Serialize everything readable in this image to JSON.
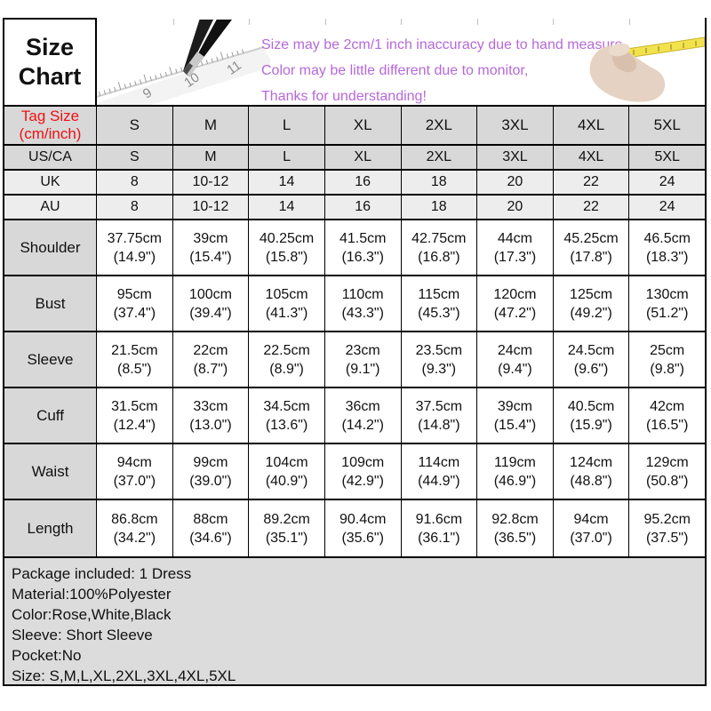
{
  "header": {
    "title_lines": [
      "Size",
      "Chart"
    ],
    "notes": [
      "Size may be 2cm/1 inch inaccuracy due to hand measure,",
      "Color may be little different due to monitor,",
      "Thanks for understanding!"
    ],
    "art": {
      "left": "pencil-and-ruler-photo",
      "right": "hand-with-yellow-ruler-photo"
    }
  },
  "size_table": {
    "corner_label": [
      "Tag Size",
      "(cm/inch)"
    ],
    "columns": [
      "S",
      "M",
      "L",
      "XL",
      "2XL",
      "3XL",
      "4XL",
      "5XL"
    ],
    "conversion_rows": [
      {
        "label": "US/CA",
        "values": [
          "S",
          "M",
          "L",
          "XL",
          "2XL",
          "3XL",
          "4XL",
          "5XL"
        ]
      },
      {
        "label": "UK",
        "values": [
          "8",
          "10-12",
          "14",
          "16",
          "18",
          "20",
          "22",
          "24"
        ]
      },
      {
        "label": "AU",
        "values": [
          "8",
          "10-12",
          "14",
          "16",
          "18",
          "20",
          "22",
          "24"
        ]
      }
    ],
    "measurement_rows": [
      {
        "label": "Shoulder",
        "cm": [
          "37.75cm",
          "39cm",
          "40.25cm",
          "41.5cm",
          "42.75cm",
          "44cm",
          "45.25cm",
          "46.5cm"
        ],
        "inch": [
          "(14.9\")",
          "(15.4\")",
          "(15.8\")",
          "(16.3\")",
          "(16.8\")",
          "(17.3\")",
          "(17.8\")",
          "(18.3\")"
        ]
      },
      {
        "label": "Bust",
        "cm": [
          "95cm",
          "100cm",
          "105cm",
          "110cm",
          "115cm",
          "120cm",
          "125cm",
          "130cm"
        ],
        "inch": [
          "(37.4\")",
          "(39.4\")",
          "(41.3\")",
          "(43.3\")",
          "(45.3\")",
          "(47.2\")",
          "(49.2\")",
          "(51.2\")"
        ]
      },
      {
        "label": "Sleeve",
        "cm": [
          "21.5cm",
          "22cm",
          "22.5cm",
          "23cm",
          "23.5cm",
          "24cm",
          "24.5cm",
          "25cm"
        ],
        "inch": [
          "(8.5\")",
          "(8.7\")",
          "(8.9\")",
          "(9.1\")",
          "(9.3\")",
          "(9.4\")",
          "(9.6\")",
          "(9.8\")"
        ]
      },
      {
        "label": "Cuff",
        "cm": [
          "31.5cm",
          "33cm",
          "34.5cm",
          "36cm",
          "37.5cm",
          "39cm",
          "40.5cm",
          "42cm"
        ],
        "inch": [
          "(12.4\")",
          "(13.0\")",
          "(13.6\")",
          "(14.2\")",
          "(14.8\")",
          "(15.4\")",
          "(15.9\")",
          "(16.5\")"
        ]
      },
      {
        "label": "Waist",
        "cm": [
          "94cm",
          "99cm",
          "104cm",
          "109cm",
          "114cm",
          "119cm",
          "124cm",
          "129cm"
        ],
        "inch": [
          "(37.0\")",
          "(39.0\")",
          "(40.9\")",
          "(42.9\")",
          "(44.9\")",
          "(46.9\")",
          "(48.8\")",
          "(50.8\")"
        ]
      },
      {
        "label": "Length",
        "cm": [
          "86.8cm",
          "88cm",
          "89.2cm",
          "90.4cm",
          "91.6cm",
          "92.8cm",
          "94cm",
          "95.2cm"
        ],
        "inch": [
          "(34.2\")",
          "(34.6\")",
          "(35.1\")",
          "(35.6\")",
          "(36.1\")",
          "(36.5\")",
          "(37.0\")",
          "(37.5\")"
        ]
      }
    ]
  },
  "product_info": {
    "lines": [
      "Package included: 1 Dress",
      "Material:100%Polyester",
      "Color:Rose,White,Black",
      "Sleeve: Short Sleeve",
      "Pocket:No",
      "Size: S,M,L,XL,2XL,3XL,4XL,5XL"
    ]
  },
  "colors": {
    "accent_red": "#ee1111",
    "note_purple": "#b768d9",
    "grid_black": "#000000",
    "cell_gray": "#d8d8d8",
    "cell_light_gray": "#ededed",
    "footer_gray": "#dcdcdc"
  }
}
